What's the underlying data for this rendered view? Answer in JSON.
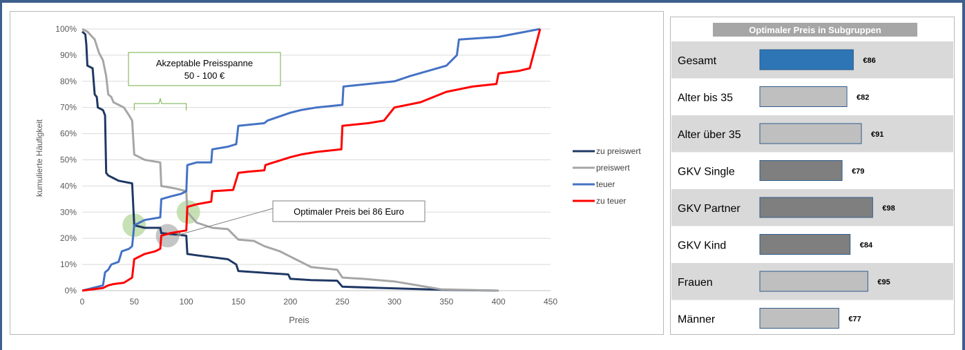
{
  "chart_data": [
    {
      "type": "line",
      "title": "",
      "xlabel": "Preis",
      "ylabel": "kumulierte Häufigkeit",
      "xlim": [
        0,
        450
      ],
      "ylim": [
        0,
        100
      ],
      "x_ticks": [
        "0",
        "50",
        "100",
        "150",
        "200",
        "250",
        "300",
        "350",
        "400",
        "450"
      ],
      "y_ticks": [
        "0%",
        "10%",
        "20%",
        "30%",
        "40%",
        "50%",
        "60%",
        "70%",
        "80%",
        "90%",
        "100%"
      ],
      "grid": "horizontal",
      "legend_position": "right",
      "series": [
        {
          "name": "zu preiswert",
          "color": "#1f3864",
          "points": [
            [
              0,
              99
            ],
            [
              3,
              98
            ],
            [
              4,
              94
            ],
            [
              5,
              86
            ],
            [
              10,
              85
            ],
            [
              12,
              75
            ],
            [
              14,
              74
            ],
            [
              15,
              70
            ],
            [
              20,
              69
            ],
            [
              22,
              67
            ],
            [
              23,
              45
            ],
            [
              25,
              44
            ],
            [
              30,
              43
            ],
            [
              35,
              42
            ],
            [
              48,
              41
            ],
            [
              50,
              25
            ],
            [
              60,
              24
            ],
            [
              75,
              24
            ],
            [
              76,
              22
            ],
            [
              100,
              21
            ],
            [
              101,
              14
            ],
            [
              110,
              13.5
            ],
            [
              140,
              12
            ],
            [
              148,
              10
            ],
            [
              150,
              7.5
            ],
            [
              175,
              6.8
            ],
            [
              198,
              6.2
            ],
            [
              200,
              4.5
            ],
            [
              220,
              4
            ],
            [
              245,
              3.8
            ],
            [
              250,
              1.5
            ],
            [
              290,
              1
            ],
            [
              350,
              0.3
            ],
            [
              400,
              0
            ]
          ]
        },
        {
          "name": "preiswert",
          "color": "#a6a6a6",
          "points": [
            [
              0,
              100
            ],
            [
              5,
              99
            ],
            [
              12,
              96
            ],
            [
              16,
              91
            ],
            [
              20,
              88
            ],
            [
              23,
              82
            ],
            [
              25,
              75
            ],
            [
              28,
              74
            ],
            [
              30,
              72
            ],
            [
              35,
              71
            ],
            [
              40,
              70
            ],
            [
              45,
              67
            ],
            [
              48,
              65
            ],
            [
              50,
              52
            ],
            [
              55,
              51
            ],
            [
              60,
              50
            ],
            [
              75,
              49
            ],
            [
              76,
              40
            ],
            [
              90,
              39
            ],
            [
              100,
              38
            ],
            [
              101,
              30
            ],
            [
              110,
              26
            ],
            [
              125,
              24
            ],
            [
              140,
              23.5
            ],
            [
              150,
              19.5
            ],
            [
              165,
              19
            ],
            [
              175,
              17
            ],
            [
              190,
              15
            ],
            [
              200,
              13
            ],
            [
              205,
              12
            ],
            [
              220,
              9
            ],
            [
              245,
              8
            ],
            [
              250,
              5
            ],
            [
              270,
              4.5
            ],
            [
              300,
              3.5
            ],
            [
              345,
              0.5
            ],
            [
              400,
              0
            ]
          ]
        },
        {
          "name": "teuer",
          "color": "#4472c4",
          "points": [
            [
              0,
              0
            ],
            [
              10,
              1
            ],
            [
              15,
              1.5
            ],
            [
              20,
              2
            ],
            [
              22,
              7
            ],
            [
              25,
              8
            ],
            [
              28,
              10
            ],
            [
              35,
              11
            ],
            [
              38,
              15
            ],
            [
              45,
              16
            ],
            [
              48,
              17
            ],
            [
              50,
              25
            ],
            [
              55,
              26
            ],
            [
              60,
              27
            ],
            [
              75,
              28
            ],
            [
              76,
              35
            ],
            [
              85,
              36
            ],
            [
              95,
              37
            ],
            [
              100,
              38
            ],
            [
              101,
              48
            ],
            [
              110,
              49
            ],
            [
              124,
              49
            ],
            [
              125,
              54
            ],
            [
              140,
              55
            ],
            [
              148,
              56
            ],
            [
              150,
              63
            ],
            [
              175,
              64
            ],
            [
              178,
              65
            ],
            [
              200,
              68
            ],
            [
              210,
              69
            ],
            [
              225,
              70
            ],
            [
              250,
              71
            ],
            [
              251,
              78
            ],
            [
              275,
              79
            ],
            [
              300,
              80
            ],
            [
              315,
              82
            ],
            [
              350,
              86
            ],
            [
              360,
              90
            ],
            [
              362,
              96
            ],
            [
              400,
              97
            ],
            [
              440,
              100
            ]
          ]
        },
        {
          "name": "zu teuer",
          "color": "#ff0000",
          "points": [
            [
              0,
              0
            ],
            [
              20,
              1
            ],
            [
              25,
              2
            ],
            [
              30,
              2.5
            ],
            [
              40,
              3
            ],
            [
              48,
              5
            ],
            [
              50,
              12
            ],
            [
              60,
              14
            ],
            [
              70,
              15
            ],
            [
              75,
              16
            ],
            [
              76,
              21
            ],
            [
              85,
              22
            ],
            [
              100,
              23
            ],
            [
              101,
              32
            ],
            [
              110,
              33
            ],
            [
              124,
              34
            ],
            [
              125,
              38
            ],
            [
              145,
              38.5
            ],
            [
              150,
              45
            ],
            [
              160,
              45.5
            ],
            [
              175,
              46
            ],
            [
              176,
              48
            ],
            [
              200,
              51
            ],
            [
              210,
              52
            ],
            [
              225,
              53
            ],
            [
              249,
              54
            ],
            [
              250,
              63
            ],
            [
              275,
              64
            ],
            [
              290,
              65
            ],
            [
              300,
              70
            ],
            [
              325,
              72
            ],
            [
              350,
              76
            ],
            [
              375,
              78
            ],
            [
              398,
              79
            ],
            [
              400,
              83
            ],
            [
              420,
              84
            ],
            [
              430,
              85
            ],
            [
              440,
              100
            ]
          ]
        }
      ],
      "annotations": [
        {
          "text_line1": "Akzeptable Preisspanne",
          "text_line2": "50 - 100 €",
          "range_x": [
            50,
            100
          ]
        },
        {
          "text": "Optimaler Preis bei 86 Euro",
          "x": 86
        }
      ],
      "highlight_points": [
        {
          "x": 50,
          "y": 25,
          "color": "#a9d18e"
        },
        {
          "x": 102,
          "y": 30,
          "color": "#a9d18e"
        },
        {
          "x": 82,
          "y": 21,
          "color": "#a6a6a6"
        }
      ]
    },
    {
      "type": "bar",
      "orientation": "horizontal",
      "title": "Optimaler Preis in Subgruppen",
      "xlim": [
        0,
        100
      ],
      "categories": [
        "Gesamt",
        "Alter bis 35",
        "Alter über 35",
        "GKV Single",
        "GKV Partner",
        "GKV Kind",
        "Frauen",
        "Männer"
      ],
      "values": [
        86,
        82,
        91,
        79,
        98,
        84,
        95,
        77
      ],
      "value_labels": [
        "€86",
        "€82",
        "€91",
        "€79",
        "€98",
        "€84",
        "€95",
        "€77"
      ],
      "bar_colors": [
        "#2e75b6",
        "#bfbfbf",
        "#bfbfbf",
        "#7f7f7f",
        "#7f7f7f",
        "#7f7f7f",
        "#bfbfbf",
        "#bfbfbf"
      ],
      "row_shading": [
        true,
        false,
        true,
        false,
        true,
        false,
        true,
        false
      ]
    }
  ],
  "colors": {
    "frame": "#3d5f8c",
    "grid": "#d9d9d9",
    "row_band": "#d9d9d9",
    "title_band": "#a6a6a6",
    "annotation_box": "#70ad47"
  }
}
